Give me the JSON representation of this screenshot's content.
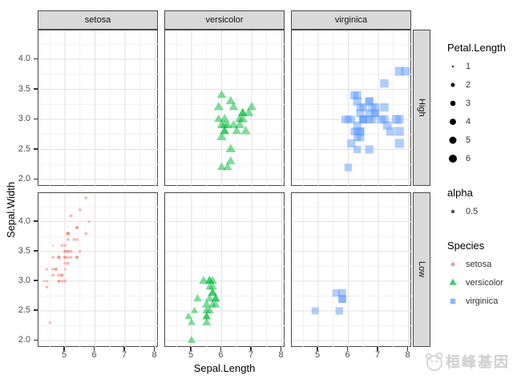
{
  "chart_data": {
    "type": "scatter",
    "xlabel": "Sepal.Length",
    "ylabel": "Sepal.Width",
    "xlim": [
      4.12,
      8.12
    ],
    "ylim": [
      1.88,
      4.48
    ],
    "x_ticks": [
      5,
      6,
      7,
      8
    ],
    "y_ticks": [
      4.0,
      3.5,
      3.0,
      2.5,
      2.0
    ],
    "x_minor": [
      4.5,
      5.5,
      6.5,
      7.5
    ],
    "y_minor": [
      2.25,
      2.75,
      3.25,
      3.75,
      4.25
    ],
    "grid": "major+minor",
    "alpha": 0.5,
    "facet_columns": [
      "setosa",
      "versicolor",
      "virginica"
    ],
    "facet_rows": [
      "High",
      "Low"
    ],
    "facet_row_rule": "High if Sepal.Length > 5.8 else Low",
    "size_variable": "Petal.Length",
    "series": [
      {
        "name": "setosa",
        "shape": "circle",
        "color": "#F8766D",
        "points": [
          [
            5.1,
            3.5,
            1.4
          ],
          [
            4.9,
            3.0,
            1.4
          ],
          [
            4.7,
            3.2,
            1.3
          ],
          [
            4.6,
            3.1,
            1.5
          ],
          [
            5.0,
            3.6,
            1.4
          ],
          [
            5.4,
            3.9,
            1.7
          ],
          [
            4.6,
            3.4,
            1.4
          ],
          [
            5.0,
            3.4,
            1.5
          ],
          [
            4.4,
            2.9,
            1.4
          ],
          [
            4.9,
            3.1,
            1.5
          ],
          [
            5.4,
            3.7,
            1.5
          ],
          [
            4.8,
            3.4,
            1.6
          ],
          [
            4.8,
            3.0,
            1.4
          ],
          [
            4.3,
            3.0,
            1.1
          ],
          [
            5.8,
            4.0,
            1.2
          ],
          [
            5.7,
            4.4,
            1.5
          ],
          [
            5.4,
            3.9,
            1.3
          ],
          [
            5.1,
            3.5,
            1.4
          ],
          [
            5.7,
            3.8,
            1.7
          ],
          [
            5.1,
            3.8,
            1.5
          ],
          [
            5.4,
            3.4,
            1.7
          ],
          [
            5.1,
            3.7,
            1.5
          ],
          [
            4.6,
            3.6,
            1.0
          ],
          [
            5.1,
            3.3,
            1.7
          ],
          [
            4.8,
            3.4,
            1.9
          ],
          [
            5.0,
            3.0,
            1.6
          ],
          [
            5.0,
            3.4,
            1.6
          ],
          [
            5.2,
            3.5,
            1.5
          ],
          [
            5.2,
            3.4,
            1.4
          ],
          [
            4.7,
            3.2,
            1.6
          ],
          [
            4.8,
            3.1,
            1.6
          ],
          [
            5.4,
            3.4,
            1.5
          ],
          [
            5.2,
            4.1,
            1.5
          ],
          [
            5.5,
            4.2,
            1.4
          ],
          [
            4.9,
            3.1,
            1.5
          ],
          [
            5.0,
            3.2,
            1.2
          ],
          [
            5.5,
            3.5,
            1.3
          ],
          [
            4.9,
            3.6,
            1.4
          ],
          [
            4.4,
            3.0,
            1.3
          ],
          [
            5.1,
            3.4,
            1.5
          ],
          [
            5.0,
            3.5,
            1.3
          ],
          [
            4.5,
            2.3,
            1.3
          ],
          [
            4.4,
            3.2,
            1.3
          ],
          [
            5.0,
            3.5,
            1.6
          ],
          [
            5.1,
            3.8,
            1.9
          ],
          [
            4.8,
            3.0,
            1.4
          ],
          [
            5.1,
            3.8,
            1.6
          ],
          [
            4.6,
            3.2,
            1.4
          ],
          [
            5.3,
            3.7,
            1.5
          ],
          [
            5.0,
            3.3,
            1.4
          ]
        ]
      },
      {
        "name": "versicolor",
        "shape": "triangle",
        "color": "#00BA38",
        "points": [
          [
            7.0,
            3.2,
            4.7
          ],
          [
            6.4,
            3.2,
            4.5
          ],
          [
            6.9,
            3.1,
            4.9
          ],
          [
            5.5,
            2.3,
            4.0
          ],
          [
            6.5,
            2.8,
            4.6
          ],
          [
            5.7,
            2.8,
            4.5
          ],
          [
            6.3,
            3.3,
            4.7
          ],
          [
            4.9,
            2.4,
            3.3
          ],
          [
            6.6,
            2.9,
            4.6
          ],
          [
            5.2,
            2.7,
            3.9
          ],
          [
            5.0,
            2.0,
            3.5
          ],
          [
            5.9,
            3.0,
            4.2
          ],
          [
            6.0,
            2.2,
            4.0
          ],
          [
            6.1,
            2.9,
            4.7
          ],
          [
            5.6,
            2.9,
            3.6
          ],
          [
            6.7,
            3.1,
            4.4
          ],
          [
            5.6,
            3.0,
            4.5
          ],
          [
            5.8,
            2.7,
            4.1
          ],
          [
            6.2,
            2.2,
            4.5
          ],
          [
            5.6,
            2.5,
            3.9
          ],
          [
            5.9,
            3.2,
            4.8
          ],
          [
            6.1,
            2.8,
            4.0
          ],
          [
            6.3,
            2.5,
            4.9
          ],
          [
            6.1,
            2.8,
            4.7
          ],
          [
            6.4,
            2.9,
            4.3
          ],
          [
            6.6,
            3.0,
            4.4
          ],
          [
            6.8,
            2.8,
            4.8
          ],
          [
            6.7,
            3.0,
            5.0
          ],
          [
            6.0,
            2.9,
            4.5
          ],
          [
            5.7,
            2.6,
            3.5
          ],
          [
            5.5,
            2.4,
            3.8
          ],
          [
            5.5,
            2.4,
            3.7
          ],
          [
            5.8,
            2.7,
            3.9
          ],
          [
            6.0,
            2.7,
            5.1
          ],
          [
            5.4,
            3.0,
            4.5
          ],
          [
            6.0,
            3.4,
            4.5
          ],
          [
            6.7,
            3.1,
            4.7
          ],
          [
            6.3,
            2.3,
            4.4
          ],
          [
            5.6,
            3.0,
            4.1
          ],
          [
            5.5,
            2.5,
            4.0
          ],
          [
            5.5,
            2.6,
            4.4
          ],
          [
            6.1,
            3.0,
            4.6
          ],
          [
            5.8,
            2.6,
            4.0
          ],
          [
            5.0,
            2.3,
            3.3
          ],
          [
            5.6,
            2.7,
            4.2
          ],
          [
            5.7,
            3.0,
            4.2
          ],
          [
            5.7,
            2.9,
            4.2
          ],
          [
            6.2,
            2.9,
            4.3
          ],
          [
            5.1,
            2.5,
            3.0
          ],
          [
            5.7,
            2.8,
            4.1
          ]
        ]
      },
      {
        "name": "virginica",
        "shape": "square",
        "color": "#619CFF",
        "points": [
          [
            6.3,
            3.3,
            6.0
          ],
          [
            5.8,
            2.7,
            5.1
          ],
          [
            7.1,
            3.0,
            5.9
          ],
          [
            6.3,
            2.9,
            5.6
          ],
          [
            6.5,
            3.0,
            5.8
          ],
          [
            7.6,
            3.0,
            6.6
          ],
          [
            4.9,
            2.5,
            4.5
          ],
          [
            7.3,
            2.9,
            6.3
          ],
          [
            6.7,
            2.5,
            5.8
          ],
          [
            7.2,
            3.6,
            6.1
          ],
          [
            6.5,
            3.2,
            5.1
          ],
          [
            6.4,
            2.7,
            5.3
          ],
          [
            6.8,
            3.0,
            5.5
          ],
          [
            5.7,
            2.5,
            5.0
          ],
          [
            5.8,
            2.8,
            5.1
          ],
          [
            6.4,
            3.2,
            5.3
          ],
          [
            6.5,
            3.0,
            5.5
          ],
          [
            7.7,
            3.8,
            6.7
          ],
          [
            7.7,
            2.6,
            6.9
          ],
          [
            6.0,
            2.2,
            5.0
          ],
          [
            6.9,
            3.2,
            5.7
          ],
          [
            5.6,
            2.8,
            4.9
          ],
          [
            7.7,
            2.8,
            6.7
          ],
          [
            6.3,
            2.7,
            4.9
          ],
          [
            6.7,
            3.3,
            5.7
          ],
          [
            7.2,
            3.2,
            6.0
          ],
          [
            6.2,
            2.8,
            4.8
          ],
          [
            6.1,
            3.0,
            4.9
          ],
          [
            6.4,
            2.8,
            5.6
          ],
          [
            7.2,
            3.0,
            5.8
          ],
          [
            7.4,
            2.8,
            6.1
          ],
          [
            7.9,
            3.8,
            6.4
          ],
          [
            6.4,
            2.8,
            5.6
          ],
          [
            6.3,
            2.8,
            5.1
          ],
          [
            6.1,
            2.6,
            5.6
          ],
          [
            7.7,
            3.0,
            6.1
          ],
          [
            6.3,
            3.4,
            5.6
          ],
          [
            6.4,
            3.1,
            5.5
          ],
          [
            6.0,
            3.0,
            4.8
          ],
          [
            6.9,
            3.1,
            5.4
          ],
          [
            6.7,
            3.1,
            5.6
          ],
          [
            6.9,
            3.1,
            5.1
          ],
          [
            5.8,
            2.7,
            5.1
          ],
          [
            6.8,
            3.2,
            5.9
          ],
          [
            6.7,
            3.3,
            5.7
          ],
          [
            6.7,
            3.0,
            5.2
          ],
          [
            6.3,
            2.5,
            5.0
          ],
          [
            6.5,
            3.0,
            5.2
          ],
          [
            6.2,
            3.4,
            5.4
          ],
          [
            5.9,
            3.0,
            5.1
          ]
        ]
      }
    ]
  },
  "legend": {
    "size": {
      "title": "Petal.Length",
      "values": [
        1,
        2,
        3,
        4,
        5,
        6
      ],
      "color": "#000000"
    },
    "alpha": {
      "title": "alpha",
      "entries": [
        {
          "label": "0.5",
          "color": "#595959"
        }
      ]
    },
    "species": {
      "title": "Species",
      "entries": [
        {
          "label": "setosa",
          "shape": "circle",
          "color": "#F8766D"
        },
        {
          "label": "versicolor",
          "shape": "triangle",
          "color": "#00BA38"
        },
        {
          "label": "virginica",
          "shape": "square",
          "color": "#619CFF"
        }
      ]
    }
  },
  "watermark": {
    "text": "桓峰基因"
  },
  "colors": {
    "strip_fill": "#d9d9d9",
    "panel_border": "#4a4a4a",
    "grid_major": "#e2e2e2",
    "grid_minor": "#f1f1f1",
    "tick_text": "#4d4d4d"
  }
}
